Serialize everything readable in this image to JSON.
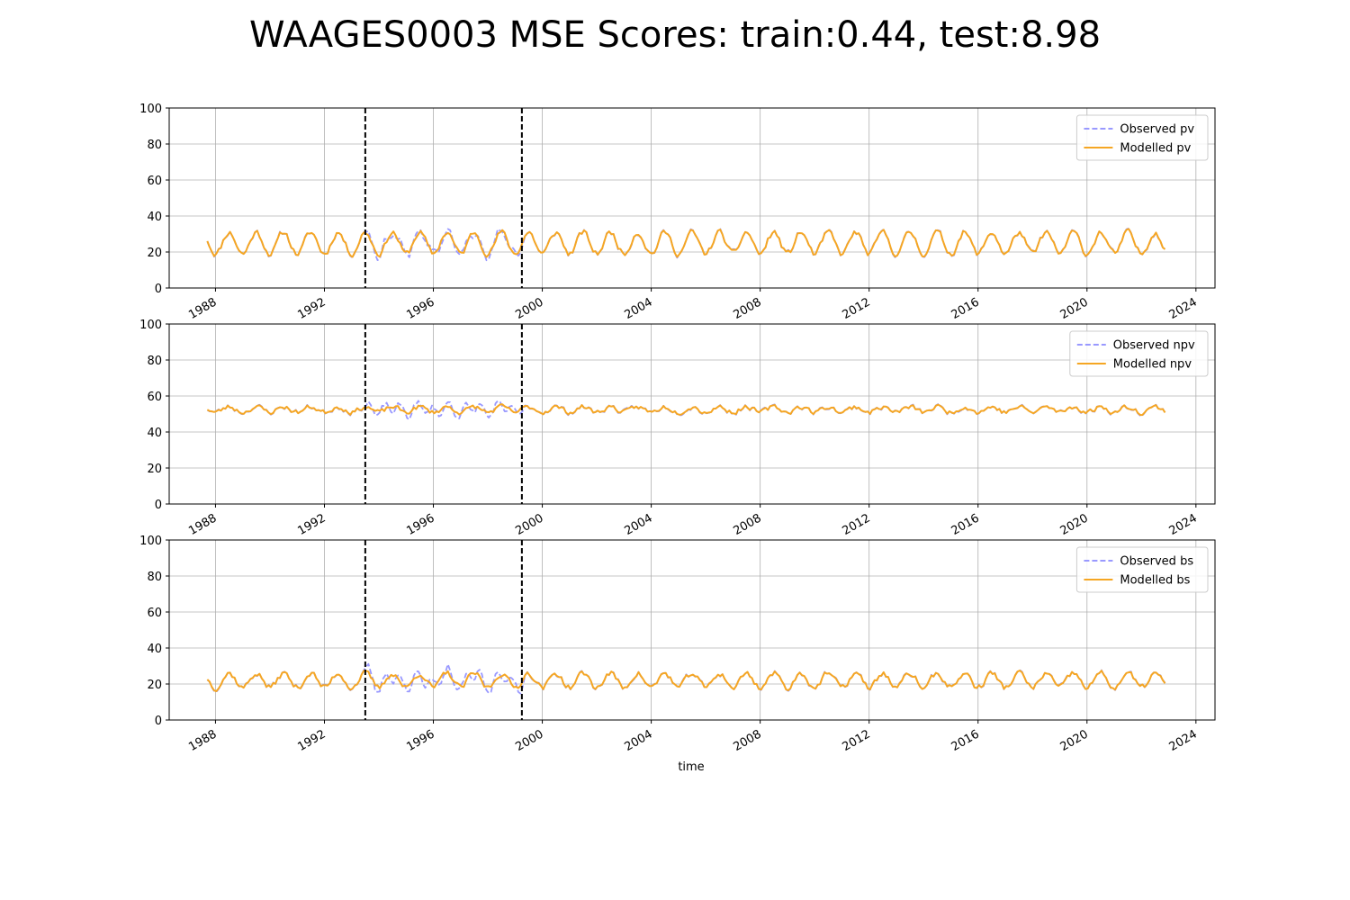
{
  "title": "WAAGES0003 MSE Scores: train:0.44, test:8.98",
  "xlabel": "time",
  "colors": {
    "observed": "#9999ff",
    "modelled": "#f5a623",
    "split_line": "#000000",
    "grid": "#b0b0b0"
  },
  "chart_data": [
    {
      "type": "line",
      "xlim": [
        1986.3,
        2024.7
      ],
      "ylim": [
        0,
        100
      ],
      "yticks": [
        0,
        20,
        40,
        60,
        80,
        100
      ],
      "xticks": [
        1988,
        1992,
        1996,
        2000,
        2004,
        2008,
        2012,
        2016,
        2020,
        2024
      ],
      "grid": true,
      "legend": "top-right",
      "vlines": [
        1993.5,
        1999.25
      ],
      "x_range": [
        1987.7,
        2022.9
      ],
      "series": [
        {
          "name": "Observed pv",
          "style": "dashed",
          "mean": 25,
          "amp": 6,
          "noise_amp": 3,
          "extra_amp": 2.5,
          "extra_range": [
            1993.5,
            1999.3
          ],
          "seed": 11
        },
        {
          "name": "Modelled pv",
          "style": "solid",
          "mean": 25,
          "amp": 6,
          "noise_amp": 2.5,
          "extra_amp": 0,
          "extra_range": [
            0,
            0
          ],
          "seed": 11
        }
      ]
    },
    {
      "type": "line",
      "xlim": [
        1986.3,
        2024.7
      ],
      "ylim": [
        0,
        100
      ],
      "yticks": [
        0,
        20,
        40,
        60,
        80,
        100
      ],
      "xticks": [
        1988,
        1992,
        1996,
        2000,
        2004,
        2008,
        2012,
        2016,
        2020,
        2024
      ],
      "grid": true,
      "legend": "top-right",
      "vlines": [
        1993.5,
        1999.25
      ],
      "x_range": [
        1987.7,
        2022.9
      ],
      "series": [
        {
          "name": "Observed npv",
          "style": "dashed",
          "mean": 52.5,
          "amp": 1.5,
          "noise_amp": 2.5,
          "extra_amp": 3,
          "extra_range": [
            1993.5,
            1999.3
          ],
          "seed": 23
        },
        {
          "name": "Modelled npv",
          "style": "solid",
          "mean": 52.5,
          "amp": 1.5,
          "noise_amp": 2,
          "extra_amp": 0,
          "extra_range": [
            0,
            0
          ],
          "seed": 23
        }
      ]
    },
    {
      "type": "line",
      "xlim": [
        1986.3,
        2024.7
      ],
      "ylim": [
        0,
        100
      ],
      "yticks": [
        0,
        20,
        40,
        60,
        80,
        100
      ],
      "xticks": [
        1988,
        1992,
        1996,
        2000,
        2004,
        2008,
        2012,
        2016,
        2020,
        2024
      ],
      "grid": true,
      "legend": "top-right",
      "vlines": [
        1993.5,
        1999.25
      ],
      "x_range": [
        1987.7,
        2022.9
      ],
      "series": [
        {
          "name": "Observed bs",
          "style": "dashed",
          "mean": 22,
          "amp": 4,
          "noise_amp": 3,
          "extra_amp": 4,
          "extra_range": [
            1993.5,
            1999.3
          ],
          "seed": 37
        },
        {
          "name": "Modelled bs",
          "style": "solid",
          "mean": 22,
          "amp": 4,
          "noise_amp": 2.5,
          "extra_amp": 0,
          "extra_range": [
            0,
            0
          ],
          "seed": 37
        }
      ]
    }
  ]
}
